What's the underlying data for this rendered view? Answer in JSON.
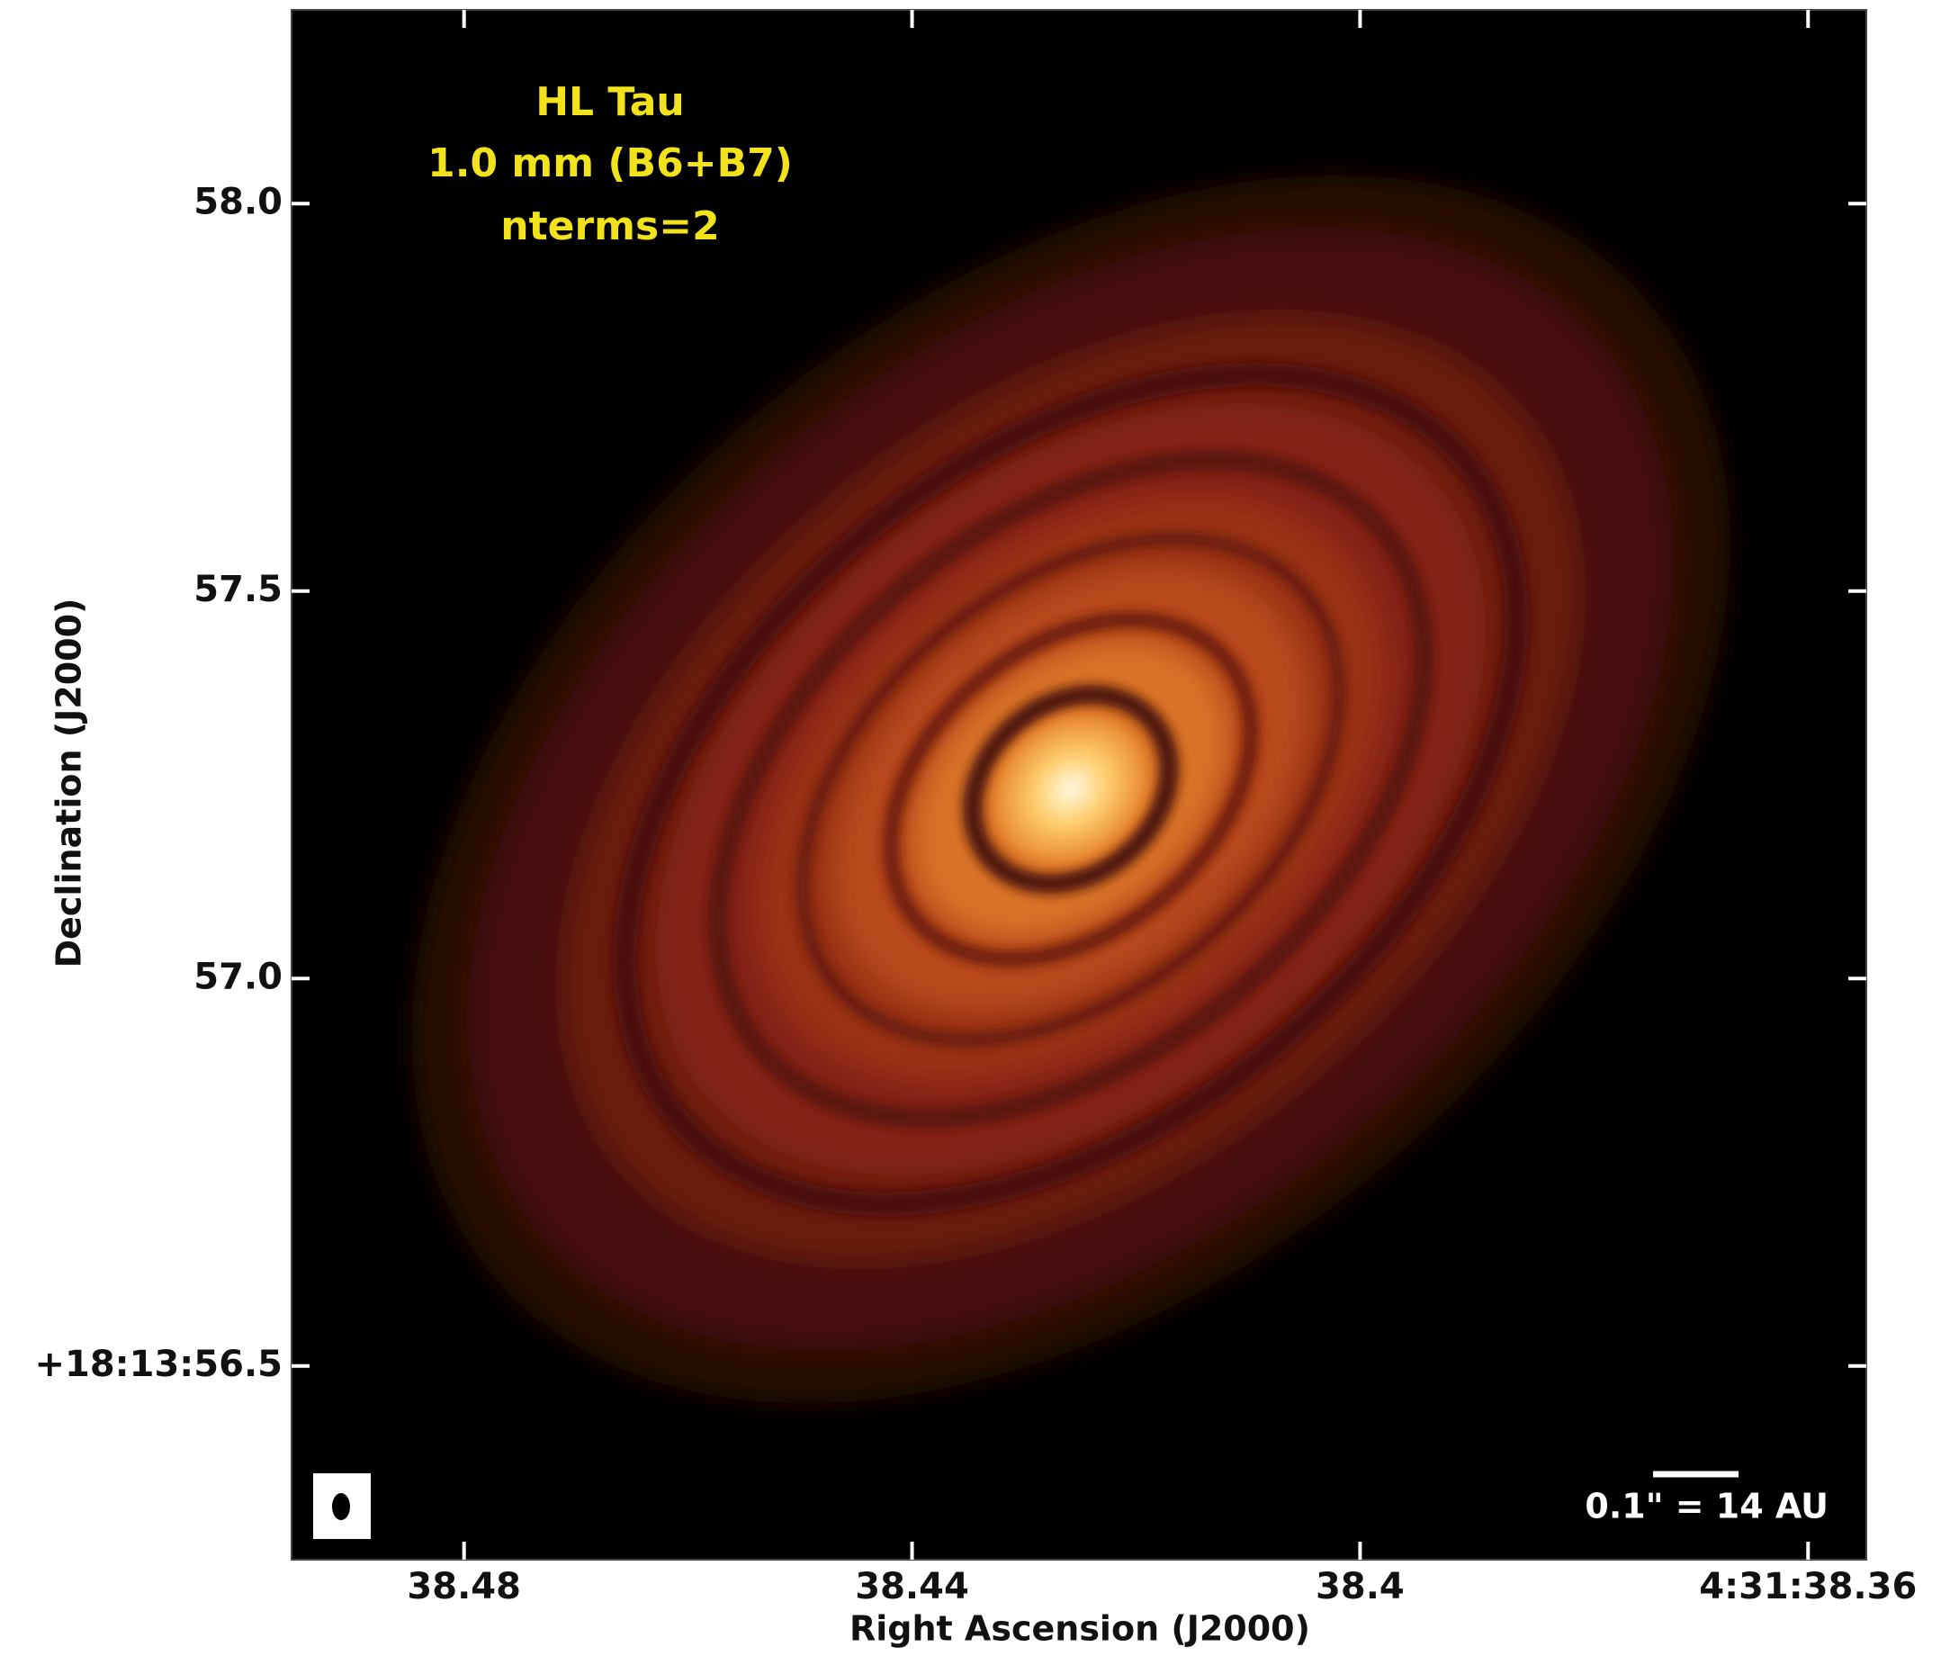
{
  "chart_data": {
    "type": "image",
    "annotations": [
      "HL Tau",
      "1.0 mm (B6+B7)",
      "nterms=2"
    ],
    "xlabel": "Right Ascension (J2000)",
    "ylabel": "Declination (J2000)",
    "scale_bar_label": "0.1\" = 14 AU",
    "xlim": [
      38.4954,
      38.3548
    ],
    "xticks": [
      38.48,
      38.44,
      38.4,
      {
        "value": 38.36,
        "label": "4:31:38.36"
      }
    ],
    "ylim": [
      56.25,
      58.25
    ],
    "yticks": [
      {
        "value": 56.5,
        "label": "+18:13:56.5"
      },
      {
        "value": 57.0,
        "label": "57.0"
      },
      {
        "value": 57.5,
        "label": "57.5"
      },
      {
        "value": 58.0,
        "label": "58.0"
      }
    ],
    "grid": false
  }
}
